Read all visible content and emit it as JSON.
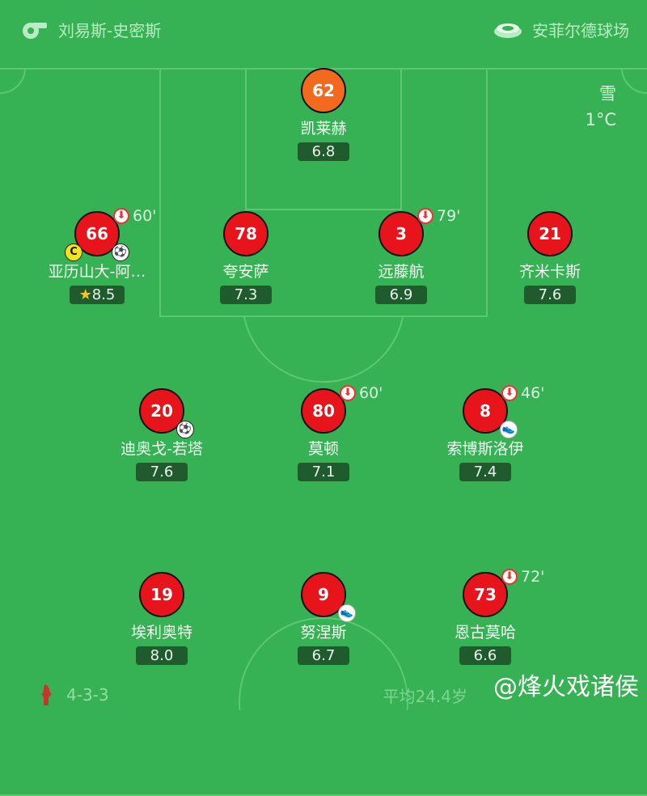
{
  "header": {
    "referee": "刘易斯-史密斯",
    "stadium": "安菲尔德球场",
    "referee_icon": "whistle-icon",
    "stadium_icon": "stadium-icon"
  },
  "weather": {
    "condition": "雪",
    "temperature": "1°C"
  },
  "players": [
    {
      "number": "62",
      "name": "凯莱赫",
      "rating": "6.8",
      "position": "goalkeeper"
    },
    {
      "number": "66",
      "name": "亚历山大-阿…",
      "rating": "8.5",
      "sub_minute": "60'",
      "captain": "C",
      "goal": true,
      "star": true
    },
    {
      "number": "78",
      "name": "夸安萨",
      "rating": "7.3"
    },
    {
      "number": "3",
      "name": "远藤航",
      "rating": "6.9",
      "sub_minute": "79'"
    },
    {
      "number": "21",
      "name": "齐米卡斯",
      "rating": "7.6"
    },
    {
      "number": "20",
      "name": "迪奥戈-若塔",
      "rating": "7.6",
      "goal": true
    },
    {
      "number": "80",
      "name": "莫顿",
      "rating": "7.1",
      "sub_minute": "60'"
    },
    {
      "number": "8",
      "name": "索博斯洛伊",
      "rating": "7.4",
      "sub_minute": "46'",
      "assist": true
    },
    {
      "number": "19",
      "name": "埃利奥特",
      "rating": "8.0"
    },
    {
      "number": "9",
      "name": "努涅斯",
      "rating": "6.7",
      "assist": true
    },
    {
      "number": "73",
      "name": "恩古莫哈",
      "rating": "6.6",
      "sub_minute": "72'"
    }
  ],
  "footer": {
    "formation": "4-3-3",
    "average": "平均24.4岁",
    "watermark": "@烽火戏诸侯",
    "club_icon": "liverpool-crest-icon"
  },
  "colors": {
    "pitch": "#36b153",
    "lines": "#5cc873",
    "player": "#e8141b",
    "goalkeeper": "#f36a1f",
    "rating_bg": "#1f5b2d"
  }
}
